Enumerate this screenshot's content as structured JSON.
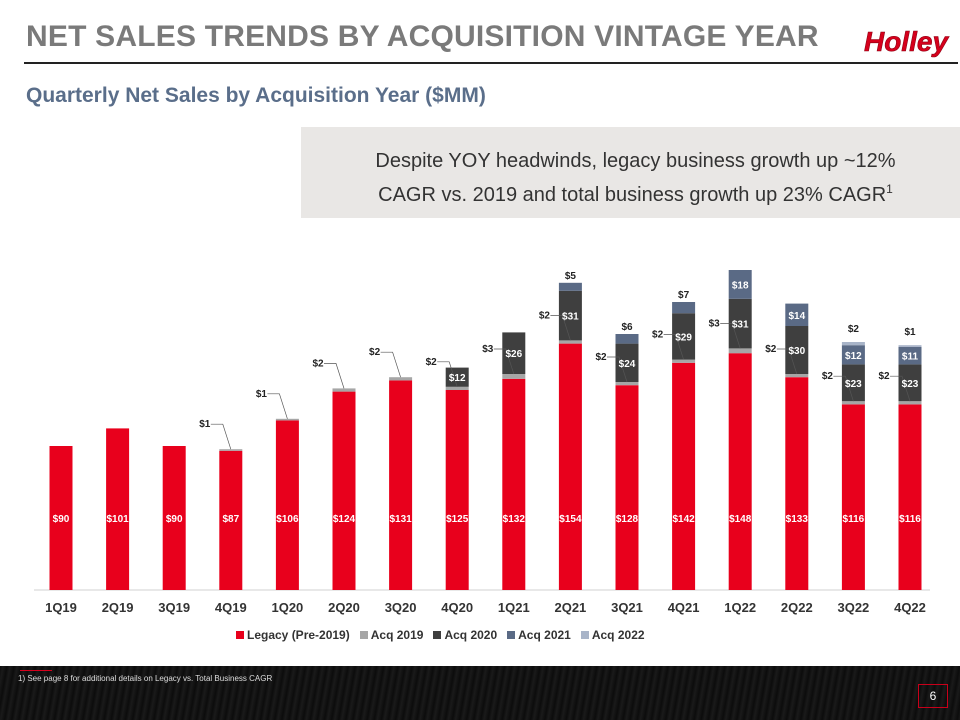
{
  "slide": {
    "title": "NET SALES TRENDS BY ACQUISITION VINTAGE YEAR",
    "logo_text": "Holley",
    "subtitle": "Quarterly Net Sales by Acquisition Year ($MM)",
    "callout_line1": "Despite YOY headwinds, legacy business growth up ~12%",
    "callout_line2": "CAGR vs. 2019 and total business growth up 23% CAGR",
    "callout_sup": "1",
    "footnote": "1)    See page  8 for additional  details on Legacy  vs. Total Business CAGR",
    "page_number": "6"
  },
  "colors": {
    "legacy": "#e8001c",
    "acq2019": "#a6a6a6",
    "acq2020": "#3f3f3f",
    "acq2021": "#5a6a85",
    "acq2022": "#a8b4c8",
    "brand_red": "#d6001c"
  },
  "chart_data": {
    "type": "bar",
    "stacked": true,
    "categories": [
      "1Q19",
      "2Q19",
      "3Q19",
      "4Q19",
      "1Q20",
      "2Q20",
      "3Q20",
      "4Q20",
      "1Q21",
      "2Q21",
      "3Q21",
      "4Q21",
      "1Q22",
      "2Q22",
      "3Q22",
      "4Q22"
    ],
    "series": [
      {
        "name": "Legacy (Pre-2019)",
        "values": [
          90,
          101,
          90,
          87,
          106,
          124,
          131,
          125,
          132,
          154,
          128,
          142,
          148,
          133,
          116,
          116
        ],
        "labels": [
          "$90",
          "$101",
          "$90",
          "$87",
          "$106",
          "$124",
          "$131",
          "$125",
          "$132",
          "$154",
          "$128",
          "$142",
          "$148",
          "$133",
          "$116",
          "$116"
        ]
      },
      {
        "name": "Acq 2019",
        "values": [
          0,
          0,
          0,
          1,
          1,
          2,
          2,
          2,
          3,
          2,
          2,
          2,
          3,
          2,
          2,
          2
        ],
        "labels": [
          "",
          "",
          "",
          "$1",
          "$1",
          "$2",
          "$2",
          "$2",
          "$3",
          "$2",
          "$2",
          "$2",
          "$3",
          "$2",
          "$2",
          "$2"
        ]
      },
      {
        "name": "Acq 2020",
        "values": [
          0,
          0,
          0,
          0,
          0,
          0,
          0,
          12,
          26,
          31,
          24,
          29,
          31,
          30,
          23,
          23
        ],
        "labels": [
          "",
          "",
          "",
          "",
          "",
          "",
          "",
          "$12",
          "$26",
          "$31",
          "$24",
          "$29",
          "$31",
          "$30",
          "$23",
          "$23"
        ]
      },
      {
        "name": "Acq 2021",
        "values": [
          0,
          0,
          0,
          0,
          0,
          0,
          0,
          0,
          0,
          5,
          6,
          7,
          18,
          14,
          12,
          11
        ],
        "labels": [
          "",
          "",
          "",
          "",
          "",
          "",
          "",
          "",
          "",
          "$5",
          "$6",
          "$7",
          "$18",
          "$14",
          "$12",
          "$11"
        ]
      },
      {
        "name": "Acq 2022",
        "values": [
          0,
          0,
          0,
          0,
          0,
          0,
          0,
          0,
          0,
          0,
          0,
          0,
          0,
          0,
          2,
          1
        ],
        "labels": [
          "",
          "",
          "",
          "",
          "",
          "",
          "",
          "",
          "",
          "",
          "",
          "",
          "",
          "",
          "$2",
          "$1"
        ]
      }
    ]
  }
}
